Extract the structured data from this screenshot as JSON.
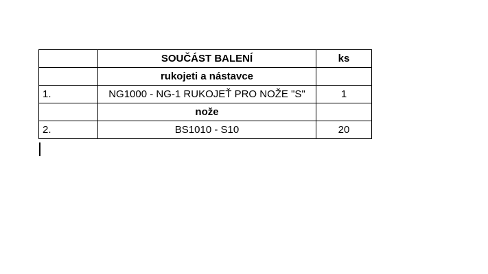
{
  "table": {
    "rows": [
      {
        "index": "",
        "description": "SOUČÁST BALENÍ",
        "quantity": "ks",
        "style": "header"
      },
      {
        "index": "",
        "description": "rukojeti a nástavce",
        "quantity": "",
        "style": "subheader"
      },
      {
        "index": "1.",
        "description": "NG1000 - NG-1 RUKOJEŤ PRO NOŽE \"S\"",
        "quantity": "1",
        "style": "item"
      },
      {
        "index": "",
        "description": "nože",
        "quantity": "",
        "style": "subheader"
      },
      {
        "index": "2.",
        "description": "BS1010 - S10",
        "quantity": "20",
        "style": "item"
      }
    ]
  },
  "cursor": {
    "present": true
  },
  "colors": {
    "border": "#000000",
    "text": "#000000",
    "background": "#ffffff"
  }
}
